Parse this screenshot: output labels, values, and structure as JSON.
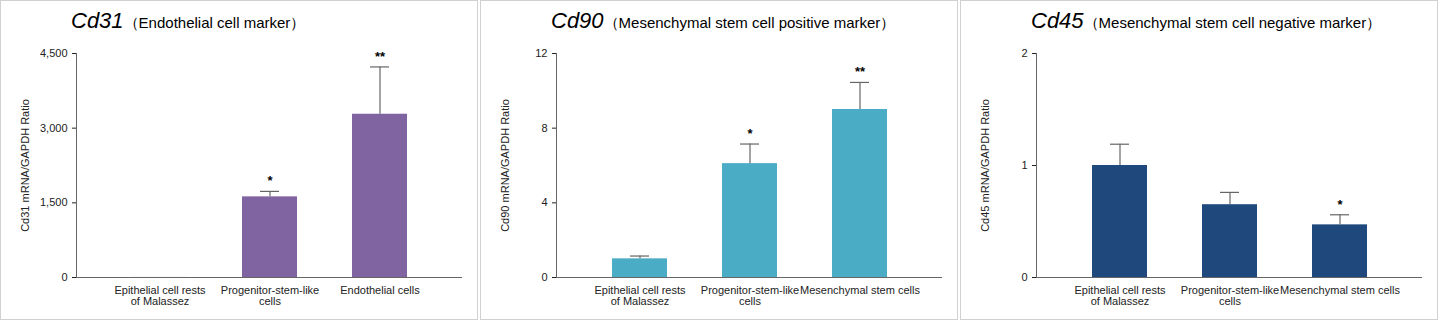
{
  "chart_data": [
    {
      "type": "bar",
      "title": "Cd31（Endothelial cell marker）",
      "y_label": "Cd31 mRNA/GAPDH Ratio",
      "categories": [
        "Epithelial cell rests of Malassez",
        "Progenitor-stem-like cells",
        "Endothelial cells"
      ],
      "values": [
        1,
        1620,
        3280
      ],
      "errors": [
        0,
        110,
        950
      ],
      "significance": [
        null,
        "*",
        "**"
      ],
      "color": "#8064a2",
      "ylim": [
        0,
        4500
      ],
      "yticks": [
        0,
        {
          "value": 1500,
          "label": "1,500"
        },
        {
          "value": 3000,
          "label": "3,000"
        },
        {
          "value": 4500,
          "label": "4,500"
        }
      ],
      "grid": false
    },
    {
      "type": "bar",
      "title": "Cd90（Mesenchymal stem cell positive marker）",
      "y_label": "Cd90 mRNA/GAPDH Ratio",
      "categories": [
        "Epithelial cell rests of Malassez",
        "Progenitor-stem-like cells",
        "Mesenchymal stem cells"
      ],
      "values": [
        1,
        6.1,
        9.0
      ],
      "errors": [
        0.15,
        1.05,
        1.45
      ],
      "significance": [
        null,
        "*",
        "**"
      ],
      "color": "#4bacc6",
      "ylim": [
        0,
        12
      ],
      "yticks": [
        0,
        4,
        8,
        12
      ],
      "grid": false
    },
    {
      "type": "bar",
      "title": "Cd45（Mesenchymal stem cell negative marker）",
      "y_label": "Cd45 mRNA/GAPDH Ratio",
      "categories": [
        "Epithelial cell rests of Malassez",
        "Progenitor-stem-like cells",
        "Mesenchymal stem cells"
      ],
      "values": [
        1.0,
        0.65,
        0.47
      ],
      "errors": [
        0.19,
        0.11,
        0.09
      ],
      "significance": [
        null,
        null,
        "*"
      ],
      "color": "#1f497d",
      "ylim": [
        0,
        2
      ],
      "yticks": [
        0,
        1,
        2
      ],
      "grid": false
    }
  ]
}
